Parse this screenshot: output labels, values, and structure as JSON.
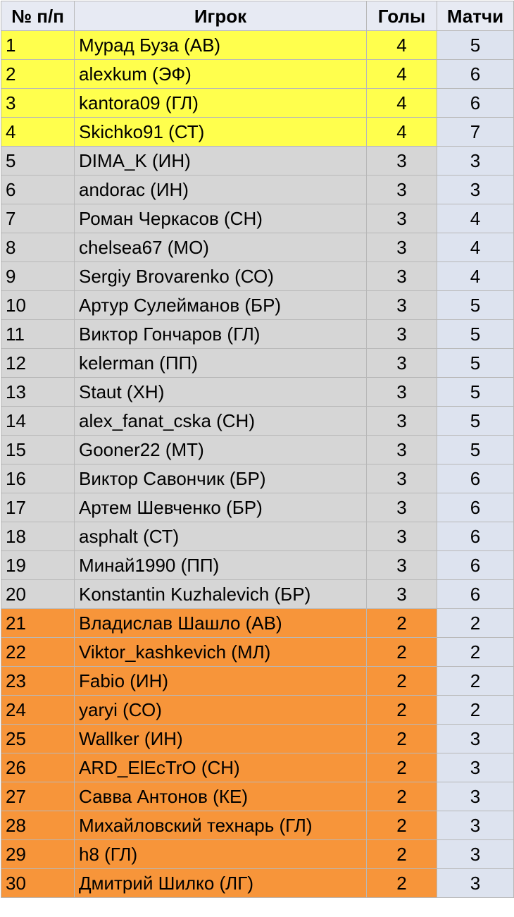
{
  "table": {
    "headers": {
      "num": "№ п/п",
      "player": "Игрок",
      "goals": "Голы",
      "matches": "Матчи"
    },
    "colors": {
      "gold": "#ffff4d",
      "silver": "#d6d6d6",
      "bronze": "#f7953a",
      "header": "#e7eaf3",
      "matches_column": "#dde3ef"
    },
    "rows": [
      {
        "num": "1",
        "player": "Мурад Буза (АВ)",
        "goals": "4",
        "matches": "5",
        "tier": "gold"
      },
      {
        "num": "2",
        "player": "alexkum (ЭФ)",
        "goals": "4",
        "matches": "6",
        "tier": "gold"
      },
      {
        "num": "3",
        "player": "kantora09 (ГЛ)",
        "goals": "4",
        "matches": "6",
        "tier": "gold"
      },
      {
        "num": "4",
        "player": "Skichko91 (СТ)",
        "goals": "4",
        "matches": "7",
        "tier": "gold"
      },
      {
        "num": "5",
        "player": "DIMA_K (ИН)",
        "goals": "3",
        "matches": "3",
        "tier": "silver"
      },
      {
        "num": "6",
        "player": "andorac (ИН)",
        "goals": "3",
        "matches": "3",
        "tier": "silver"
      },
      {
        "num": "7",
        "player": "Роман Черкасов (СН)",
        "goals": "3",
        "matches": "4",
        "tier": "silver"
      },
      {
        "num": "8",
        "player": "chelsea67 (МО)",
        "goals": "3",
        "matches": "4",
        "tier": "silver"
      },
      {
        "num": "9",
        "player": "Sergiy Brovarenko (СО)",
        "goals": "3",
        "matches": "4",
        "tier": "silver"
      },
      {
        "num": "10",
        "player": "Артур Сулейманов (БР)",
        "goals": "3",
        "matches": "5",
        "tier": "silver"
      },
      {
        "num": "11",
        "player": "Виктор Гончаров (ГЛ)",
        "goals": "3",
        "matches": "5",
        "tier": "silver"
      },
      {
        "num": "12",
        "player": "kelerman (ПП)",
        "goals": "3",
        "matches": "5",
        "tier": "silver"
      },
      {
        "num": "13",
        "player": "Staut (ХН)",
        "goals": "3",
        "matches": "5",
        "tier": "silver"
      },
      {
        "num": "14",
        "player": "alex_fanat_cska (СН)",
        "goals": "3",
        "matches": "5",
        "tier": "silver"
      },
      {
        "num": "15",
        "player": "Gooner22 (МТ)",
        "goals": "3",
        "matches": "5",
        "tier": "silver"
      },
      {
        "num": "16",
        "player": "Виктор Савончик (БР)",
        "goals": "3",
        "matches": "6",
        "tier": "silver"
      },
      {
        "num": "17",
        "player": "Артем Шевченко (БР)",
        "goals": "3",
        "matches": "6",
        "tier": "silver"
      },
      {
        "num": "18",
        "player": "asphalt (СТ)",
        "goals": "3",
        "matches": "6",
        "tier": "silver"
      },
      {
        "num": "19",
        "player": "Минай1990 (ПП)",
        "goals": "3",
        "matches": "6",
        "tier": "silver"
      },
      {
        "num": "20",
        "player": "Konstantin Kuzhalevich (БР)",
        "goals": "3",
        "matches": "6",
        "tier": "silver"
      },
      {
        "num": "21",
        "player": "Владислав Шашло (АВ)",
        "goals": "2",
        "matches": "2",
        "tier": "bronze"
      },
      {
        "num": "22",
        "player": "Viktor_kashkevich (МЛ)",
        "goals": "2",
        "matches": "2",
        "tier": "bronze"
      },
      {
        "num": "23",
        "player": "Fabio (ИН)",
        "goals": "2",
        "matches": "2",
        "tier": "bronze"
      },
      {
        "num": "24",
        "player": "yaryi (СО)",
        "goals": "2",
        "matches": "2",
        "tier": "bronze"
      },
      {
        "num": "25",
        "player": "Wallker (ИН)",
        "goals": "2",
        "matches": "3",
        "tier": "bronze"
      },
      {
        "num": "26",
        "player": "ARD_ElEcTrO (СН)",
        "goals": "2",
        "matches": "3",
        "tier": "bronze"
      },
      {
        "num": "27",
        "player": "Савва Антонов (КЕ)",
        "goals": "2",
        "matches": "3",
        "tier": "bronze"
      },
      {
        "num": "28",
        "player": "Михайловский технарь (ГЛ)",
        "goals": "2",
        "matches": "3",
        "tier": "bronze"
      },
      {
        "num": "29",
        "player": "h8 (ГЛ)",
        "goals": "2",
        "matches": "3",
        "tier": "bronze"
      },
      {
        "num": "30",
        "player": "Дмитрий Шилко (ЛГ)",
        "goals": "2",
        "matches": "3",
        "tier": "bronze"
      }
    ]
  }
}
